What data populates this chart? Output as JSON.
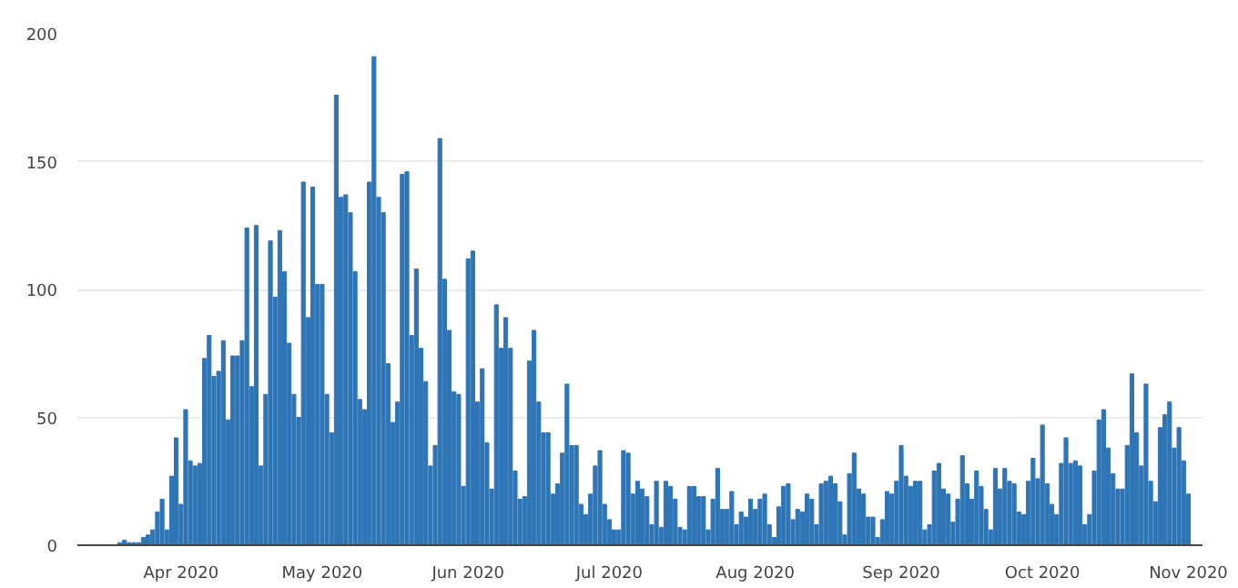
{
  "chart_data": {
    "type": "bar",
    "color": "#2e75b6",
    "grid": "y",
    "xlim": [
      "2020-03-10",
      "2020-11-04"
    ],
    "ylim": [
      0,
      200
    ],
    "yticks": [
      0,
      50,
      100,
      150,
      200
    ],
    "xticks": [
      {
        "value": "2020-04-01",
        "label": "Apr 2020"
      },
      {
        "value": "2020-05-01",
        "label": "May 2020"
      },
      {
        "value": "2020-06-01",
        "label": "Jun 2020"
      },
      {
        "value": "2020-07-01",
        "label": "Jul 2020"
      },
      {
        "value": "2020-08-01",
        "label": "Aug 2020"
      },
      {
        "value": "2020-09-01",
        "label": "Sep 2020"
      },
      {
        "value": "2020-10-01",
        "label": "Oct 2020"
      },
      {
        "value": "2020-11-01",
        "label": "Nov 2020"
      }
    ],
    "x": [
      "2020-03-15",
      "2020-03-16",
      "2020-03-17",
      "2020-03-18",
      "2020-03-19",
      "2020-03-20",
      "2020-03-21",
      "2020-03-22",
      "2020-03-23",
      "2020-03-24",
      "2020-03-25",
      "2020-03-26",
      "2020-03-27",
      "2020-03-28",
      "2020-03-29",
      "2020-03-30",
      "2020-03-31",
      "2020-04-01",
      "2020-04-02",
      "2020-04-03",
      "2020-04-04",
      "2020-04-05",
      "2020-04-06",
      "2020-04-07",
      "2020-04-08",
      "2020-04-09",
      "2020-04-10",
      "2020-04-11",
      "2020-04-12",
      "2020-04-13",
      "2020-04-14",
      "2020-04-15",
      "2020-04-16",
      "2020-04-17",
      "2020-04-18",
      "2020-04-19",
      "2020-04-20",
      "2020-04-21",
      "2020-04-22",
      "2020-04-23",
      "2020-04-24",
      "2020-04-25",
      "2020-04-26",
      "2020-04-27",
      "2020-04-28",
      "2020-04-29",
      "2020-04-30",
      "2020-05-01",
      "2020-05-02",
      "2020-05-03",
      "2020-05-04",
      "2020-05-05",
      "2020-05-06",
      "2020-05-07",
      "2020-05-08",
      "2020-05-09",
      "2020-05-10",
      "2020-05-11",
      "2020-05-12",
      "2020-05-13",
      "2020-05-14",
      "2020-05-15",
      "2020-05-16",
      "2020-05-17",
      "2020-05-18",
      "2020-05-19",
      "2020-05-20",
      "2020-05-21",
      "2020-05-22",
      "2020-05-23",
      "2020-05-24",
      "2020-05-25",
      "2020-05-26",
      "2020-05-27",
      "2020-05-28",
      "2020-05-29",
      "2020-05-30",
      "2020-05-31",
      "2020-06-01",
      "2020-06-02",
      "2020-06-03",
      "2020-06-04",
      "2020-06-05",
      "2020-06-06",
      "2020-06-07",
      "2020-06-08",
      "2020-06-09",
      "2020-06-10",
      "2020-06-11",
      "2020-06-12",
      "2020-06-13",
      "2020-06-14",
      "2020-06-15",
      "2020-06-16",
      "2020-06-17",
      "2020-06-18",
      "2020-06-19",
      "2020-06-20",
      "2020-06-21",
      "2020-06-22",
      "2020-06-23",
      "2020-06-24",
      "2020-06-25",
      "2020-06-26",
      "2020-06-27",
      "2020-06-28",
      "2020-06-29",
      "2020-06-30",
      "2020-07-01",
      "2020-07-02",
      "2020-07-03",
      "2020-07-04",
      "2020-07-05",
      "2020-07-06",
      "2020-07-07",
      "2020-07-08",
      "2020-07-09",
      "2020-07-10",
      "2020-07-11",
      "2020-07-12",
      "2020-07-13",
      "2020-07-14",
      "2020-07-15",
      "2020-07-16",
      "2020-07-17",
      "2020-07-18",
      "2020-07-19",
      "2020-07-20",
      "2020-07-21",
      "2020-07-22",
      "2020-07-23",
      "2020-07-24",
      "2020-07-25",
      "2020-07-26",
      "2020-07-27",
      "2020-07-28",
      "2020-07-29",
      "2020-07-30",
      "2020-07-31",
      "2020-08-01",
      "2020-08-02",
      "2020-08-03",
      "2020-08-04",
      "2020-08-05",
      "2020-08-06",
      "2020-08-07",
      "2020-08-08",
      "2020-08-09",
      "2020-08-10",
      "2020-08-11",
      "2020-08-12",
      "2020-08-13",
      "2020-08-14",
      "2020-08-15",
      "2020-08-16",
      "2020-08-17",
      "2020-08-18",
      "2020-08-19",
      "2020-08-20",
      "2020-08-21",
      "2020-08-22",
      "2020-08-23",
      "2020-08-24",
      "2020-08-25",
      "2020-08-26",
      "2020-08-27",
      "2020-08-28",
      "2020-08-29",
      "2020-08-30",
      "2020-08-31",
      "2020-09-01",
      "2020-09-02",
      "2020-09-03",
      "2020-09-04",
      "2020-09-05",
      "2020-09-06",
      "2020-09-07",
      "2020-09-08",
      "2020-09-09",
      "2020-09-10",
      "2020-09-11",
      "2020-09-12",
      "2020-09-13",
      "2020-09-14",
      "2020-09-15",
      "2020-09-16",
      "2020-09-17",
      "2020-09-18",
      "2020-09-19",
      "2020-09-20",
      "2020-09-21",
      "2020-09-22",
      "2020-09-23",
      "2020-09-24",
      "2020-09-25",
      "2020-09-26",
      "2020-09-27",
      "2020-09-28",
      "2020-09-29",
      "2020-09-30",
      "2020-10-01",
      "2020-10-02",
      "2020-10-03",
      "2020-10-04",
      "2020-10-05",
      "2020-10-06",
      "2020-10-07",
      "2020-10-08",
      "2020-10-09",
      "2020-10-10",
      "2020-10-11",
      "2020-10-12",
      "2020-10-13",
      "2020-10-14",
      "2020-10-15",
      "2020-10-16",
      "2020-10-17",
      "2020-10-18",
      "2020-10-19",
      "2020-10-20",
      "2020-10-21",
      "2020-10-22",
      "2020-10-23",
      "2020-10-24",
      "2020-10-25",
      "2020-10-26",
      "2020-10-27",
      "2020-10-28",
      "2020-10-29",
      "2020-10-30",
      "2020-10-31",
      "2020-11-01"
    ],
    "values": [
      0,
      0,
      0,
      0,
      1,
      2,
      1,
      1,
      1,
      3,
      4,
      6,
      13,
      18,
      6,
      27,
      42,
      16,
      53,
      33,
      31,
      32,
      73,
      82,
      66,
      68,
      80,
      49,
      74,
      74,
      80,
      124,
      62,
      125,
      31,
      59,
      119,
      97,
      123,
      107,
      79,
      59,
      50,
      142,
      89,
      140,
      102,
      102,
      59,
      44,
      176,
      136,
      137,
      130,
      107,
      57,
      53,
      142,
      191,
      136,
      130,
      71,
      48,
      56,
      145,
      146,
      82,
      108,
      77,
      64,
      31,
      39,
      159,
      104,
      84,
      60,
      59,
      23,
      112,
      115,
      56,
      69,
      40,
      22,
      94,
      77,
      89,
      77,
      29,
      18,
      19,
      72,
      84,
      56,
      44,
      44,
      20,
      24,
      36,
      63,
      39,
      39,
      16,
      12,
      20,
      31,
      37,
      16,
      10,
      6,
      6,
      37,
      36,
      20,
      25,
      22,
      19,
      8,
      25,
      7,
      25,
      23,
      18,
      7,
      6,
      23,
      23,
      19,
      19,
      6,
      18,
      30,
      14,
      14,
      21,
      8,
      13,
      11,
      18,
      14,
      18,
      20,
      8,
      3,
      15,
      23,
      24,
      10,
      14,
      13,
      20,
      18,
      8,
      24,
      25,
      27,
      24,
      17,
      4,
      28,
      36,
      22,
      20,
      11,
      11,
      3,
      10,
      21,
      20,
      25,
      39,
      27,
      23,
      25,
      25,
      6,
      8,
      29,
      32,
      22,
      20,
      9,
      18,
      35,
      24,
      18,
      29,
      23,
      14,
      6,
      30,
      22,
      30,
      25,
      24,
      13,
      12,
      25,
      34,
      26,
      47,
      24,
      16,
      12,
      32,
      42,
      32,
      33,
      31,
      8,
      12,
      29,
      49,
      53,
      38,
      28,
      22,
      22,
      39,
      67,
      44,
      31,
      63,
      25,
      17,
      46,
      51,
      56,
      38,
      46,
      33,
      20
    ]
  }
}
